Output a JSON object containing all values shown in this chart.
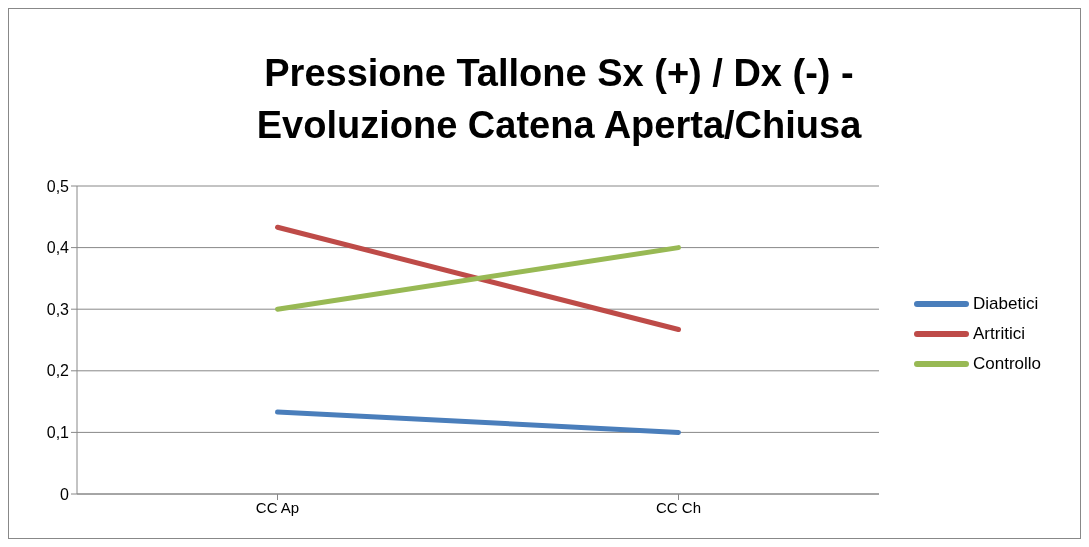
{
  "chart_data": {
    "type": "line",
    "title": "Pressione Tallone Sx (+) / Dx (-) - Evoluzione Catena Aperta/Chiusa",
    "categories": [
      "CC Ap",
      "CC Ch"
    ],
    "series": [
      {
        "name": "Diabetici",
        "color": "#4a7ebb",
        "values": [
          0.133,
          0.1
        ]
      },
      {
        "name": "Artritici",
        "color": "#be4b48",
        "values": [
          0.433,
          0.267
        ]
      },
      {
        "name": "Controllo",
        "color": "#98b954",
        "values": [
          0.3,
          0.4
        ]
      }
    ],
    "ylim": [
      0,
      0.5
    ],
    "yticks": [
      {
        "value": 0,
        "label": "0"
      },
      {
        "value": 0.1,
        "label": "0,1"
      },
      {
        "value": 0.2,
        "label": "0,2"
      },
      {
        "value": 0.3,
        "label": "0,3"
      },
      {
        "value": 0.4,
        "label": "0,4"
      },
      {
        "value": 0.5,
        "label": "0,5"
      }
    ],
    "grid": "y",
    "legend": "right",
    "marker": "none",
    "line_style": "solid"
  }
}
